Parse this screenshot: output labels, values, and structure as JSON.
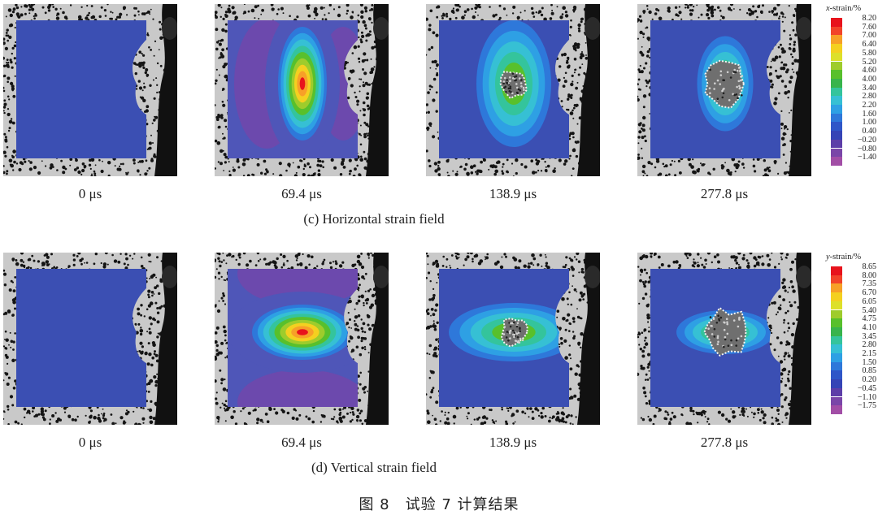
{
  "rows": [
    {
      "caption": "(c) Horizontal strain field",
      "times": [
        "0 μs",
        "69.4 μs",
        "138.9 μs",
        "277.8 μs"
      ],
      "legend": {
        "axis": "x",
        "title_rest": "-strain/%",
        "ticks": [
          "8.20",
          "7.60",
          "7.00",
          "6.40",
          "5.80",
          "5.20",
          "4.60",
          "4.00",
          "3.40",
          "2.80",
          "2.20",
          "1.60",
          "1.00",
          "0.40",
          "−0.20",
          "−0.80",
          "−1.40"
        ]
      }
    },
    {
      "caption": "(d) Vertical strain field",
      "times": [
        "0 μs",
        "69.4 μs",
        "138.9 μs",
        "277.8 μs"
      ],
      "legend": {
        "axis": "y",
        "title_rest": "-strain/%",
        "ticks": [
          "8.65",
          "8.00",
          "7.35",
          "6.70",
          "6.05",
          "5.40",
          "4.75",
          "4.10",
          "3.45",
          "2.80",
          "2.15",
          "1.50",
          "0.85",
          "0.20",
          "−0.45",
          "−1.10",
          "−1.75"
        ]
      }
    }
  ],
  "legend_colors": [
    "#e8131c",
    "#f2442a",
    "#f7a028",
    "#f4d020",
    "#dde02a",
    "#9ecc2c",
    "#58c02c",
    "#38b44c",
    "#34c49c",
    "#36c0d4",
    "#2ea0e4",
    "#2e78da",
    "#2f56c8",
    "#3544b6",
    "#5d3ea8",
    "#7a46a8",
    "#a24ea6"
  ],
  "figure_caption": "图 8　试验 7 计算结果"
}
